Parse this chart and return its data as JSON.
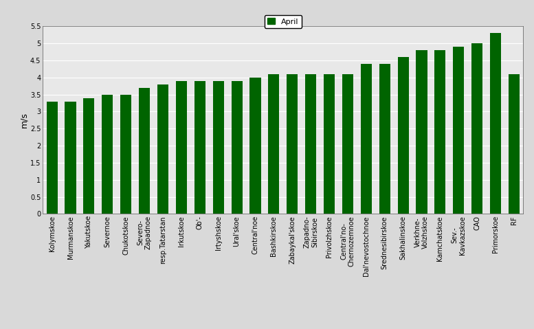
{
  "categories": [
    "Kolymskoe",
    "Murmanskoe",
    "Yakutskoe",
    "Severnoe",
    "Chukotskoe",
    "Severo-\nZapadnoe",
    "resp.Tatarstan",
    "Irkutskoe",
    "Ob'-",
    "Irtyshskoe",
    "Ural'skoe",
    "Central'noe",
    "Bashkirskoe",
    "Zabaykal'skoe",
    "Zapadno-\nSibirskoe",
    "Privolzhskoe",
    "Central'no-\nChernozemnoe",
    "Dal'nevostochnoe",
    "Srednesibirskoe",
    "Sakhalinskoe",
    "Verkhne-\nVolzhskoe",
    "Kamchatskoe",
    "Sev.-\nKavkazskoe",
    "CAO",
    "Primorskoe",
    "RF"
  ],
  "values": [
    3.3,
    3.3,
    3.4,
    3.5,
    3.5,
    3.7,
    3.8,
    3.9,
    3.9,
    3.9,
    3.9,
    4.0,
    4.1,
    4.1,
    4.1,
    4.1,
    4.1,
    4.4,
    4.4,
    4.6,
    4.8,
    4.8,
    4.9,
    5.0,
    5.3,
    4.1
  ],
  "bar_color": "#006400",
  "ylabel": "m/s",
  "ylim": [
    0,
    5.5
  ],
  "yticks": [
    0,
    0.5,
    1.0,
    1.5,
    2.0,
    2.5,
    3.0,
    3.5,
    4.0,
    4.5,
    5.0,
    5.5
  ],
  "ytick_labels": [
    "0",
    "0.5",
    "1",
    "1.5",
    "2",
    "2.5",
    "3",
    "3.5",
    "4",
    "4.5",
    "5",
    "5.5"
  ],
  "legend_label": "April",
  "legend_color": "#006400",
  "bg_color": "#d9d9d9",
  "plot_bg_color": "#e8e8e8",
  "grid_color": "#ffffff",
  "tick_fontsize": 7,
  "ylabel_fontsize": 9,
  "bar_width": 0.6
}
